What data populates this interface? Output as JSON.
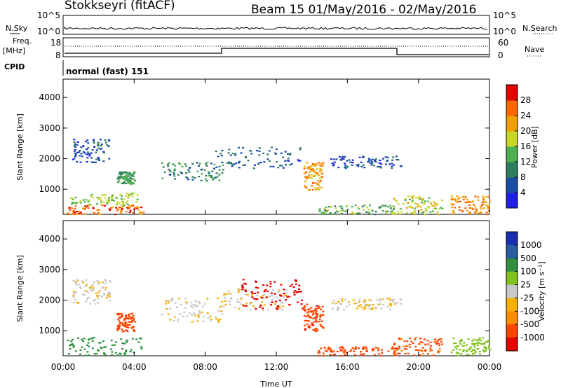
{
  "header": {
    "title": "Stokkseyri (fitACF)",
    "beam_info": "Beam 15 01/May/2016 - 02/May/2016"
  },
  "top_panels": {
    "nsky_label": "N.Sky",
    "nsky_ticks": [
      "10^5",
      "10^0"
    ],
    "nsearch_label": "N.Search",
    "nsearch_ticks": [
      "10^5",
      "10^0"
    ],
    "freq_label": "Freq.",
    "freq_unit": "[MHz]",
    "freq_ticks": [
      "18",
      "8"
    ],
    "nave_label": "Nave",
    "nave_ticks": [
      "60",
      "0"
    ],
    "cpid_label": "CPID",
    "cpid_value": "normal (fast) 151"
  },
  "colors": {
    "power": [
      "#1f1fe6",
      "#1a4ea6",
      "#2e7d5e",
      "#4caf50",
      "#c8d62a",
      "#f0a000",
      "#ff6600",
      "#e60000"
    ],
    "velocity": [
      "#e60000",
      "#ff4500",
      "#ff8c00",
      "#f5b000",
      "#c8c8c8",
      "#7fc31c",
      "#2f8f3f",
      "#2a5aa0",
      "#1a2fb0"
    ]
  },
  "chart_data": [
    {
      "type": "heatmap",
      "name": "power",
      "ylabel": "Slant Range [km]",
      "xlabel": "Time UT",
      "xticks": [
        "00:00",
        "04:00",
        "08:00",
        "12:00",
        "16:00",
        "20:00",
        "00:00"
      ],
      "yticks": [
        "1000",
        "2000",
        "3000",
        "4000"
      ],
      "ylim": [
        180,
        4600
      ],
      "xlim_hours": [
        0,
        24
      ],
      "colorbar": {
        "label": "Power [dB]",
        "ticks": [
          "4",
          "8",
          "12",
          "16",
          "20",
          "24",
          "28"
        ],
        "range": [
          0,
          32
        ]
      },
      "regions": [
        {
          "t0": 0.2,
          "t1": 4.5,
          "r0": 200,
          "r1": 500,
          "value": 26
        },
        {
          "t0": 0.3,
          "t1": 4.2,
          "r0": 500,
          "r1": 900,
          "value": 16
        },
        {
          "t0": 0.5,
          "t1": 2.6,
          "r0": 1900,
          "r1": 2700,
          "value": 6
        },
        {
          "t0": 3.0,
          "t1": 4.0,
          "r0": 1200,
          "r1": 1600,
          "value": 12
        },
        {
          "t0": 5.5,
          "t1": 9.0,
          "r0": 1300,
          "r1": 1900,
          "value": 10
        },
        {
          "t0": 8.5,
          "t1": 13.5,
          "r0": 1700,
          "r1": 2400,
          "value": 7
        },
        {
          "t0": 13.5,
          "t1": 14.6,
          "r0": 1000,
          "r1": 1900,
          "value": 22
        },
        {
          "t0": 14.3,
          "t1": 18.8,
          "r0": 200,
          "r1": 500,
          "value": 14
        },
        {
          "t0": 15.0,
          "t1": 19.0,
          "r0": 1700,
          "r1": 2100,
          "value": 6
        },
        {
          "t0": 18.5,
          "t1": 21.3,
          "r0": 200,
          "r1": 800,
          "value": 18
        },
        {
          "t0": 21.8,
          "t1": 24.0,
          "r0": 200,
          "r1": 800,
          "value": 24
        }
      ]
    },
    {
      "type": "heatmap",
      "name": "velocity",
      "ylabel": "Slant Range [km]",
      "xlabel": "Time UT",
      "xticks": [
        "00:00",
        "04:00",
        "08:00",
        "12:00",
        "16:00",
        "20:00",
        "00:00"
      ],
      "yticks": [
        "1000",
        "2000",
        "3000",
        "4000"
      ],
      "ylim": [
        180,
        4600
      ],
      "xlim_hours": [
        0,
        24
      ],
      "colorbar": {
        "label": "Velocity [m s⁻¹]",
        "ticks": [
          "1000",
          "500",
          "100",
          "25",
          "-25",
          "-100",
          "-500",
          "-1000"
        ]
      },
      "regions": [
        {
          "t0": 0.2,
          "t1": 4.5,
          "r0": 200,
          "r1": 800,
          "value": 200
        },
        {
          "t0": 3.0,
          "t1": 4.0,
          "r0": 1000,
          "r1": 1600,
          "value": -300
        },
        {
          "t0": 0.5,
          "t1": 2.6,
          "r0": 1900,
          "r1": 2700,
          "value": 0
        },
        {
          "t0": 5.5,
          "t1": 9.0,
          "r0": 1300,
          "r1": 2100,
          "value": 0
        },
        {
          "t0": 9.0,
          "t1": 12.5,
          "r0": 1700,
          "r1": 2400,
          "value": 0
        },
        {
          "t0": 10.0,
          "t1": 13.5,
          "r0": 1700,
          "r1": 2700,
          "value": -800
        },
        {
          "t0": 13.5,
          "t1": 14.6,
          "r0": 1000,
          "r1": 1900,
          "value": -400
        },
        {
          "t0": 14.3,
          "t1": 18.8,
          "r0": 200,
          "r1": 500,
          "value": -300
        },
        {
          "t0": 15.0,
          "t1": 19.0,
          "r0": 1700,
          "r1": 2100,
          "value": 0
        },
        {
          "t0": 18.5,
          "t1": 21.3,
          "r0": 200,
          "r1": 800,
          "value": -120
        },
        {
          "t0": 21.8,
          "t1": 24.0,
          "r0": 200,
          "r1": 800,
          "value": 60
        }
      ]
    }
  ]
}
